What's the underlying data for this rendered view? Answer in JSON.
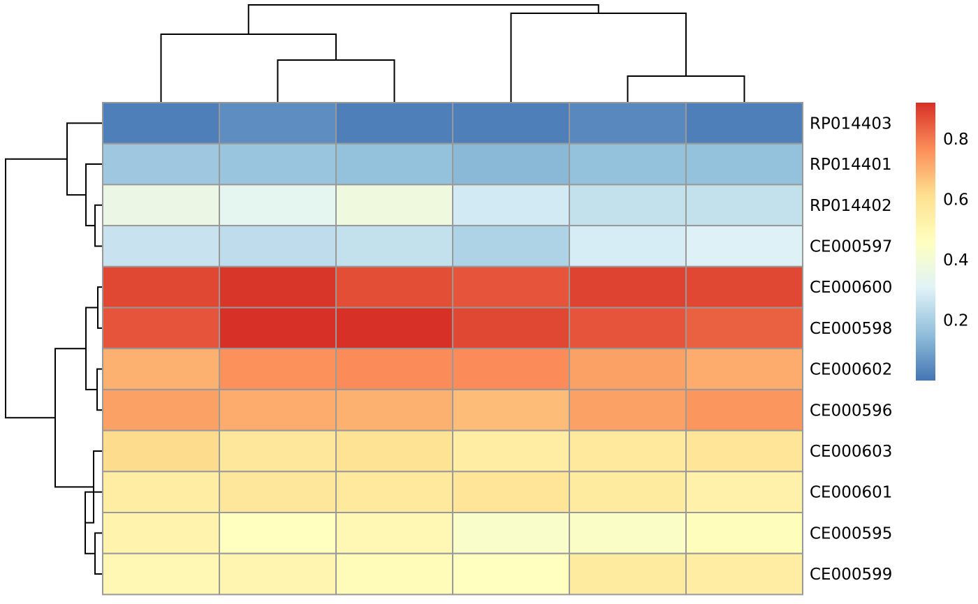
{
  "chart_data": {
    "type": "heatmap",
    "title": "",
    "xlabel": "",
    "ylabel": "",
    "column_labels": [
      "",
      "",
      "",
      "",
      "",
      ""
    ],
    "row_labels": [
      "RP014403",
      "RP014401",
      "RP014402",
      "CE000597",
      "CE000600",
      "CE000598",
      "CE000602",
      "CE000596",
      "CE000603",
      "CE000601",
      "CE000595",
      "CE000599"
    ],
    "values": [
      [
        0.02,
        0.05,
        0.02,
        0.02,
        0.04,
        0.02
      ],
      [
        0.18,
        0.17,
        0.16,
        0.14,
        0.16,
        0.16
      ],
      [
        0.36,
        0.33,
        0.38,
        0.28,
        0.25,
        0.25
      ],
      [
        0.26,
        0.24,
        0.25,
        0.21,
        0.29,
        0.3
      ],
      [
        0.88,
        0.91,
        0.87,
        0.86,
        0.89,
        0.88
      ],
      [
        0.86,
        0.92,
        0.92,
        0.88,
        0.86,
        0.84
      ],
      [
        0.7,
        0.76,
        0.77,
        0.77,
        0.73,
        0.71
      ],
      [
        0.73,
        0.71,
        0.7,
        0.68,
        0.73,
        0.75
      ],
      [
        0.62,
        0.58,
        0.6,
        0.55,
        0.57,
        0.59
      ],
      [
        0.55,
        0.58,
        0.57,
        0.59,
        0.56,
        0.53
      ],
      [
        0.52,
        0.46,
        0.5,
        0.43,
        0.44,
        0.47
      ],
      [
        0.5,
        0.51,
        0.48,
        0.46,
        0.56,
        0.55
      ]
    ],
    "color_scale": {
      "min": 0.0,
      "max": 0.92,
      "stops": [
        "#4575B4",
        "#91BFDB",
        "#E0F3F8",
        "#FFFFBF",
        "#FEE090",
        "#FC8D59",
        "#D73027"
      ],
      "ticks": [
        "0.2",
        "0.4",
        "0.6",
        "0.8"
      ],
      "tick_values": [
        0.2,
        0.4,
        0.6,
        0.8
      ]
    },
    "legend_placement": "right",
    "cell_border_color": "#999999",
    "grid": true,
    "column_dendrogram": {
      "merges": [
        [
          1,
          2
        ],
        [
          4,
          5
        ],
        [
          0,
          "c12"
        ],
        [
          3,
          "c45"
        ],
        [
          "c012",
          "c345"
        ]
      ],
      "order": [
        0,
        1,
        2,
        3,
        4,
        5
      ]
    },
    "row_dendrogram": {
      "merges": [
        [
          2,
          3
        ],
        [
          1,
          "r23"
        ],
        [
          0,
          "r123"
        ],
        [
          4,
          5
        ],
        [
          6,
          7
        ],
        [
          "r45",
          "r67"
        ],
        [
          10,
          11
        ],
        [
          9,
          "r1011"
        ],
        [
          8,
          "r91011"
        ],
        [
          "r4567",
          "r891011"
        ],
        [
          "r0123",
          "r4567891011"
        ]
      ]
    }
  }
}
